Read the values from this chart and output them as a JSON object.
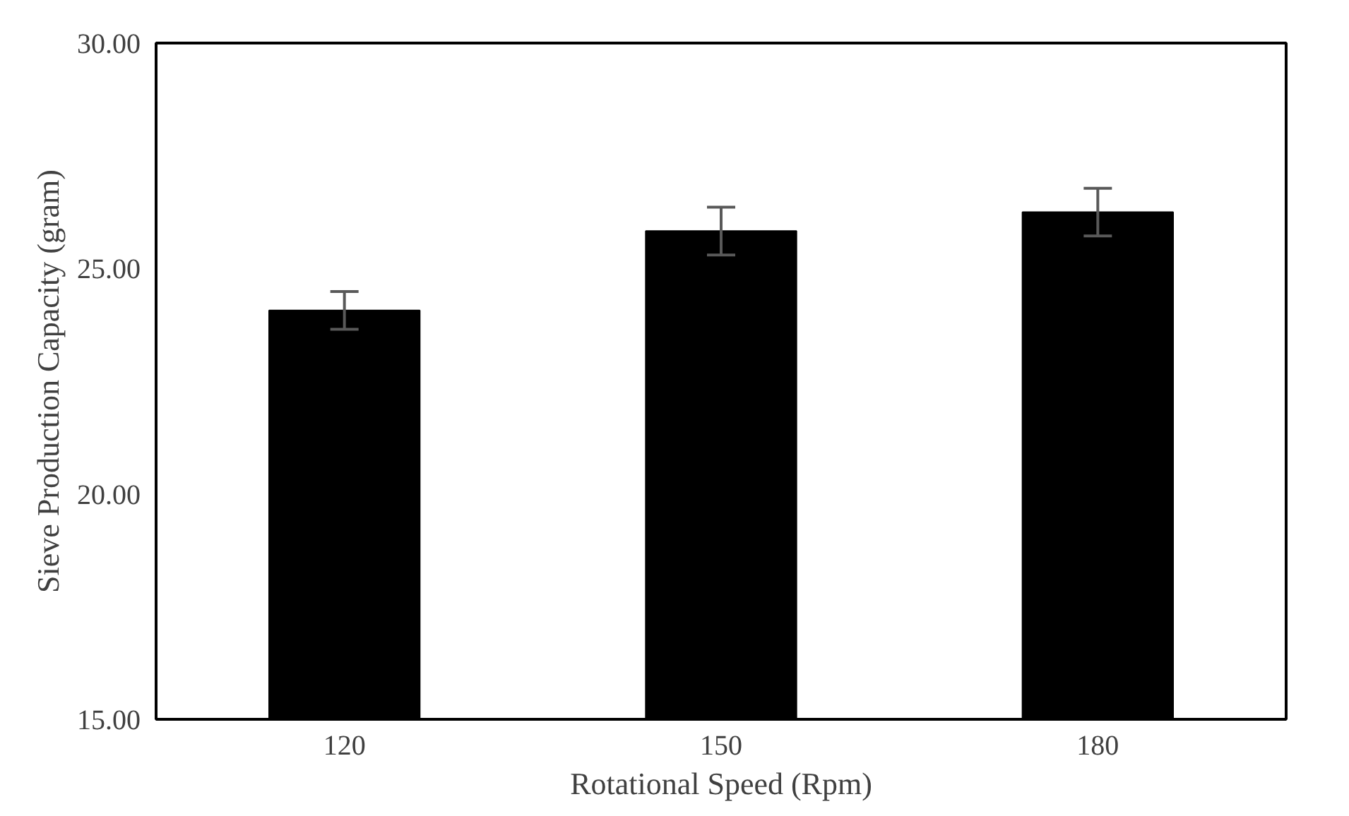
{
  "chart_data": {
    "type": "bar",
    "xlabel": "Rotational Speed (Rpm)",
    "ylabel": "Sieve Production Capacity (gram)",
    "categories": [
      "120",
      "150",
      "180"
    ],
    "values": [
      24.07,
      25.83,
      26.25
    ],
    "errors": [
      0.42,
      0.53,
      0.53
    ],
    "color": "#000000",
    "ylim": [
      15,
      30
    ],
    "yticks": [
      {
        "value": 15,
        "label": "15.00"
      },
      {
        "value": 20,
        "label": "20.00"
      },
      {
        "value": 25,
        "label": "25.00"
      },
      {
        "value": 30,
        "label": "30.00"
      }
    ],
    "grid": false
  }
}
